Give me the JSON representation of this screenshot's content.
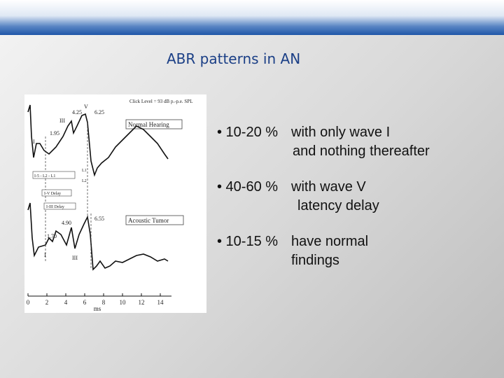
{
  "title": "ABR patterns in AN",
  "figure": {
    "caption": "Click Level = 93 dB p.-p.e. SPL",
    "panels": [
      "Normal Hearing",
      "Acoustic Tumor"
    ],
    "peak_labels": [
      "4.25",
      "V",
      "6.25",
      "III",
      "1.95",
      "I",
      "L1",
      "L2",
      "6.55",
      "4.90",
      "1.70",
      "I",
      "III"
    ],
    "interval_labels": [
      "I-5 - L2 - L1",
      "I-V Delay",
      "I-III Delay"
    ],
    "x_ticks": [
      "0",
      "2",
      "4",
      "6",
      "8",
      "10",
      "12",
      "14"
    ],
    "x_label": "ms"
  },
  "bullets": [
    {
      "marker": "• 10-20 %",
      "lines": [
        "with only wave I",
        "and nothing thereafter"
      ]
    },
    {
      "marker": "• 40-60 %",
      "lines": [
        "with wave V",
        "latency delay"
      ]
    },
    {
      "marker": "• 10-15 %",
      "lines": [
        "have normal",
        "findings"
      ]
    }
  ]
}
